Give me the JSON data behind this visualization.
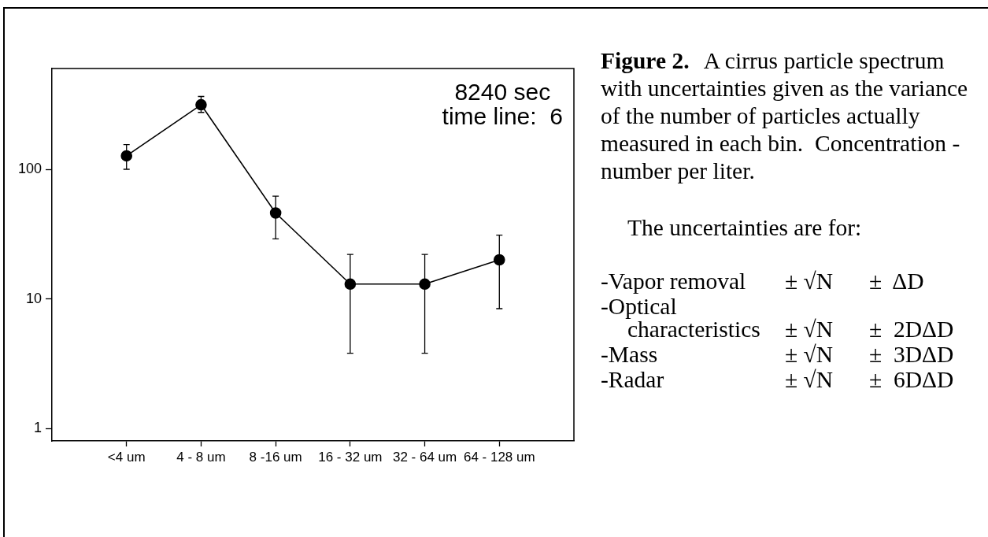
{
  "chart_data": {
    "type": "line",
    "categories": [
      "<4 um",
      "4 - 8 um",
      "8 -16 um",
      "16 - 32 um",
      "32 - 64 um",
      "64 - 128 um"
    ],
    "series": [
      {
        "color": "#000000",
        "values": [
          127,
          315,
          46,
          13,
          13,
          20
        ],
        "errors": [
          [
            100,
            155
          ],
          [
            275,
            365
          ],
          [
            29,
            62
          ],
          [
            3.8,
            22
          ],
          [
            3.8,
            22
          ],
          [
            8.4,
            31
          ]
        ]
      }
    ],
    "ylim": [
      0.8,
      600
    ],
    "yticks": [
      1,
      10,
      100
    ],
    "log": true,
    "grid": false,
    "legend": false,
    "marker": "circle",
    "line_style": "solid",
    "annotations": [
      "8240 sec",
      "time line:  6",
      "Figure 2.",
      "A cirrus particle spectrum",
      "with uncertainties given as the variance\nof the number of particles actually\nmeasured in each bin.  Concentration -\nnumber per liter.",
      "The uncertainties are for:",
      "-Vapor removal",
      "± √N",
      "±  ΔD",
      "-Optical characteristics",
      "± √N",
      "±  2DΔD",
      "-Mass",
      "± √N",
      "±  3DΔD",
      "-Radar",
      "± √N",
      "±  6DΔD"
    ]
  }
}
